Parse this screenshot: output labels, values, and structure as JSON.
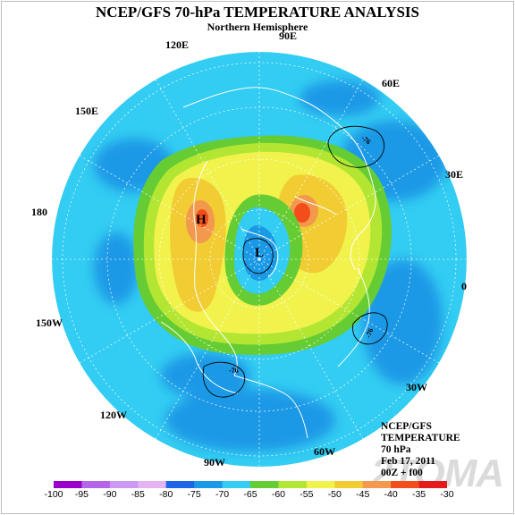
{
  "header": {
    "title": "NCEP/GFS 70-hPa TEMPERATURE ANALYSIS",
    "subtitle": "Northern Hemisphere"
  },
  "longitude_labels": {
    "lon_90e": "90E",
    "lon_120e": "120E",
    "lon_60e": "60E",
    "lon_150e": "150E",
    "lon_30e": "30E",
    "lon_180": "180",
    "lon_0": "0",
    "lon_150w": "150W",
    "lon_30w": "30W",
    "lon_120w": "120W",
    "lon_60w": "60W",
    "lon_90w": "90W"
  },
  "map_markers": {
    "high": "H",
    "low": "L",
    "contour_a": "-76",
    "contour_b": "-76",
    "contour_c": "-76"
  },
  "info_block": {
    "line1": "NCEP/GFS",
    "line2": "TEMPERATURE",
    "line3": "70 hPa",
    "line4": "Feb 17, 2011",
    "line5": "00Z + f00"
  },
  "watermark": "2TOMA",
  "colorbar": {
    "labels": [
      "-100",
      "-95",
      "-90",
      "-85",
      "-80",
      "-75",
      "-70",
      "-65",
      "-60",
      "-55",
      "-50",
      "-45",
      "-40",
      "-35",
      "-30"
    ],
    "colors": [
      "#9900cc",
      "#b366e6",
      "#cc99f2",
      "#e6b3f2",
      "#1a66e6",
      "#1a99e6",
      "#33ccf2",
      "#66cc33",
      "#b3e633",
      "#f2f24d",
      "#f2cc33",
      "#f2994d",
      "#f24d1a",
      "#e61a1a"
    ]
  }
}
